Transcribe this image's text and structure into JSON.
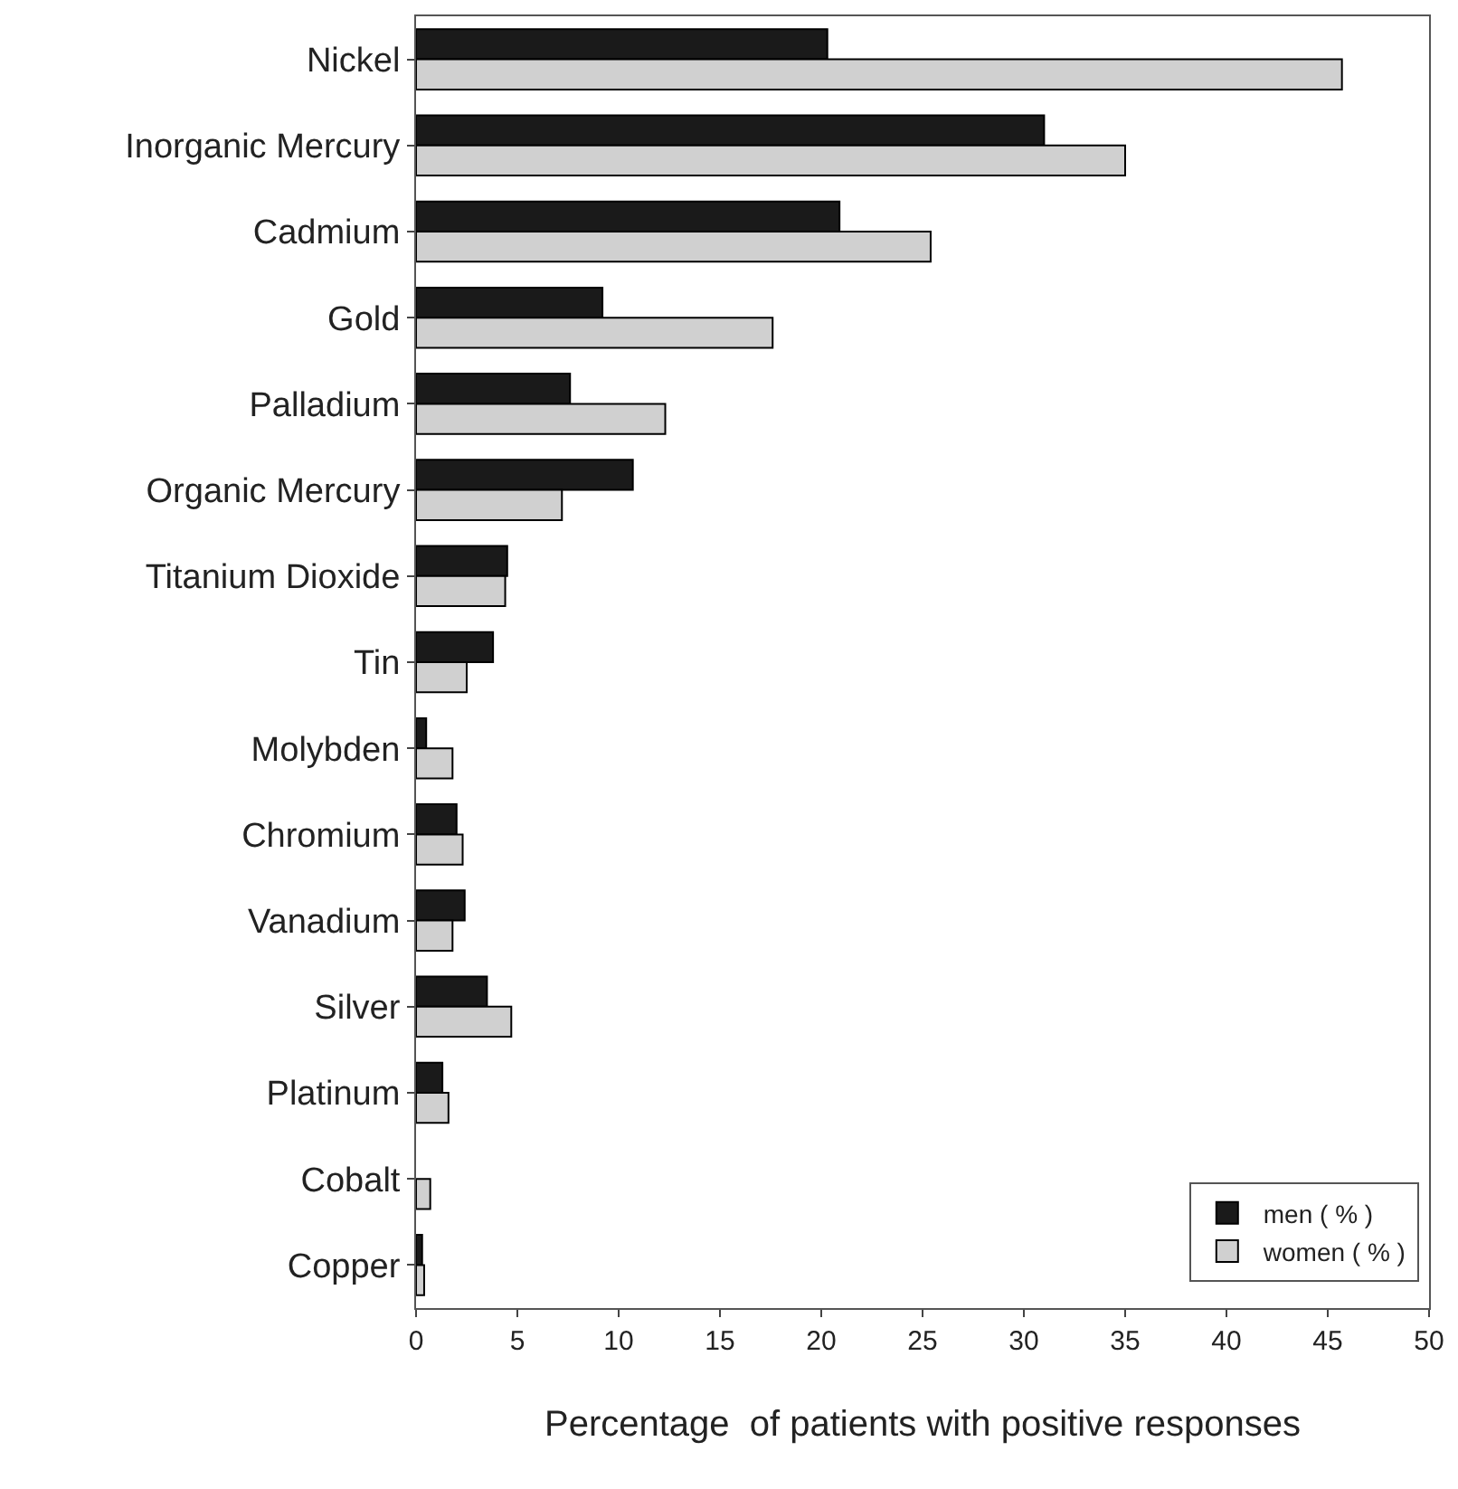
{
  "chart_data": {
    "type": "bar",
    "orientation": "horizontal",
    "xlabel": "Percentage  of patients with positive responses",
    "categories": [
      "Nickel",
      "Inorganic Mercury",
      "Cadmium",
      "Gold",
      "Palladium",
      "Organic Mercury",
      "Titanium Dioxide",
      "Tin",
      "Molybden",
      "Chromium",
      "Vanadium",
      "Silver",
      "Platinum",
      "Cobalt",
      "Copper"
    ],
    "series": [
      {
        "name": "men ( % )",
        "color": "#1a1a1a",
        "values": [
          20.3,
          31.0,
          20.9,
          9.2,
          7.6,
          10.7,
          4.5,
          3.8,
          0.5,
          2.0,
          2.4,
          3.5,
          1.3,
          0,
          0.3
        ]
      },
      {
        "name": "women ( % )",
        "color": "#d0d0d0",
        "values": [
          45.7,
          35.0,
          25.4,
          17.6,
          12.3,
          7.2,
          4.4,
          2.5,
          1.8,
          2.3,
          1.8,
          4.7,
          1.6,
          0.7,
          0.4
        ]
      }
    ],
    "xlim": [
      0,
      50
    ],
    "xticks": [
      0,
      5,
      10,
      15,
      20,
      25,
      30,
      35,
      40,
      45,
      50
    ],
    "grid": false,
    "legend": "bottom right"
  }
}
